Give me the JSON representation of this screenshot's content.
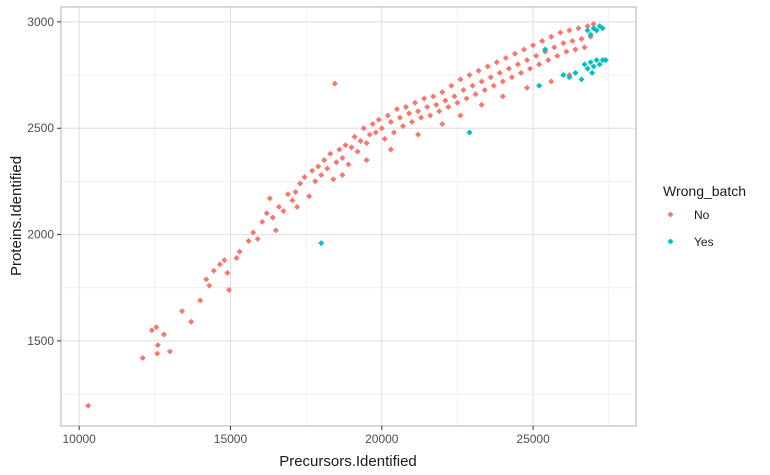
{
  "chart_data": {
    "type": "scatter",
    "xlabel": "Precursors.Identified",
    "ylabel": "Proteins.Identified",
    "xlim": [
      9400,
      28400
    ],
    "ylim": [
      1100,
      3070
    ],
    "x_ticks": [
      10000,
      15000,
      20000,
      25000
    ],
    "y_ticks": [
      1500,
      2000,
      2500,
      3000
    ],
    "grid": true,
    "legend": {
      "title": "Wrong_batch",
      "placement": "right",
      "entries": [
        {
          "label": "No",
          "color": "#F8766D"
        },
        {
          "label": "Yes",
          "color": "#00BFC4"
        }
      ]
    },
    "series": [
      {
        "name": "No",
        "color": "#F8766D",
        "marker": "diamond",
        "points": [
          [
            10300,
            1195
          ],
          [
            12100,
            1420
          ],
          [
            12400,
            1550
          ],
          [
            12550,
            1565
          ],
          [
            12600,
            1480
          ],
          [
            12580,
            1440
          ],
          [
            12800,
            1530
          ],
          [
            13000,
            1450
          ],
          [
            13400,
            1640
          ],
          [
            13700,
            1590
          ],
          [
            14000,
            1690
          ],
          [
            14200,
            1790
          ],
          [
            14300,
            1760
          ],
          [
            14450,
            1830
          ],
          [
            14650,
            1860
          ],
          [
            14800,
            1880
          ],
          [
            14900,
            1820
          ],
          [
            14950,
            1740
          ],
          [
            15200,
            1890
          ],
          [
            15300,
            1920
          ],
          [
            15600,
            1970
          ],
          [
            15750,
            2010
          ],
          [
            15900,
            1980
          ],
          [
            16050,
            2060
          ],
          [
            16200,
            2100
          ],
          [
            16400,
            2080
          ],
          [
            16500,
            2020
          ],
          [
            16600,
            2130
          ],
          [
            16750,
            2110
          ],
          [
            16900,
            2190
          ],
          [
            17050,
            2160
          ],
          [
            17150,
            2200
          ],
          [
            17300,
            2240
          ],
          [
            17450,
            2270
          ],
          [
            17600,
            2180
          ],
          [
            17700,
            2300
          ],
          [
            17800,
            2250
          ],
          [
            17900,
            2320
          ],
          [
            18000,
            2280
          ],
          [
            18100,
            2350
          ],
          [
            18200,
            2310
          ],
          [
            18300,
            2380
          ],
          [
            18400,
            2260
          ],
          [
            18500,
            2340
          ],
          [
            18600,
            2400
          ],
          [
            18700,
            2360
          ],
          [
            18800,
            2420
          ],
          [
            18900,
            2330
          ],
          [
            19000,
            2410
          ],
          [
            19100,
            2460
          ],
          [
            19200,
            2390
          ],
          [
            19300,
            2440
          ],
          [
            19400,
            2500
          ],
          [
            19500,
            2430
          ],
          [
            19600,
            2470
          ],
          [
            19700,
            2520
          ],
          [
            19800,
            2480
          ],
          [
            19900,
            2540
          ],
          [
            20000,
            2500
          ],
          [
            20100,
            2450
          ],
          [
            20200,
            2560
          ],
          [
            20300,
            2530
          ],
          [
            20400,
            2480
          ],
          [
            20500,
            2590
          ],
          [
            20600,
            2550
          ],
          [
            20700,
            2510
          ],
          [
            20800,
            2600
          ],
          [
            20900,
            2570
          ],
          [
            21000,
            2530
          ],
          [
            21100,
            2620
          ],
          [
            21200,
            2580
          ],
          [
            21300,
            2550
          ],
          [
            21400,
            2640
          ],
          [
            21500,
            2600
          ],
          [
            21600,
            2560
          ],
          [
            21700,
            2650
          ],
          [
            21800,
            2610
          ],
          [
            21900,
            2580
          ],
          [
            22000,
            2670
          ],
          [
            22100,
            2630
          ],
          [
            22200,
            2600
          ],
          [
            22300,
            2700
          ],
          [
            22400,
            2650
          ],
          [
            22500,
            2620
          ],
          [
            22600,
            2730
          ],
          [
            22700,
            2680
          ],
          [
            22800,
            2640
          ],
          [
            22900,
            2750
          ],
          [
            23000,
            2700
          ],
          [
            23100,
            2660
          ],
          [
            23200,
            2770
          ],
          [
            23300,
            2720
          ],
          [
            23400,
            2680
          ],
          [
            23500,
            2790
          ],
          [
            23600,
            2740
          ],
          [
            23700,
            2700
          ],
          [
            23800,
            2810
          ],
          [
            23900,
            2760
          ],
          [
            24000,
            2720
          ],
          [
            24100,
            2830
          ],
          [
            24200,
            2780
          ],
          [
            24300,
            2740
          ],
          [
            24400,
            2850
          ],
          [
            24500,
            2800
          ],
          [
            24600,
            2760
          ],
          [
            24700,
            2870
          ],
          [
            24800,
            2820
          ],
          [
            24900,
            2780
          ],
          [
            25000,
            2890
          ],
          [
            25100,
            2840
          ],
          [
            25200,
            2800
          ],
          [
            25300,
            2910
          ],
          [
            25400,
            2860
          ],
          [
            25500,
            2820
          ],
          [
            25600,
            2930
          ],
          [
            25700,
            2880
          ],
          [
            25800,
            2840
          ],
          [
            25900,
            2950
          ],
          [
            26000,
            2900
          ],
          [
            26100,
            2860
          ],
          [
            26200,
            2960
          ],
          [
            26300,
            2910
          ],
          [
            26400,
            2870
          ],
          [
            26500,
            2970
          ],
          [
            26600,
            2920
          ],
          [
            26700,
            2880
          ],
          [
            26800,
            2980
          ],
          [
            26900,
            2930
          ],
          [
            27000,
            2990
          ],
          [
            18450,
            2710
          ],
          [
            16300,
            2170
          ],
          [
            17200,
            2130
          ],
          [
            18700,
            2280
          ],
          [
            19500,
            2350
          ],
          [
            20300,
            2400
          ],
          [
            21200,
            2470
          ],
          [
            22000,
            2520
          ],
          [
            22600,
            2560
          ],
          [
            23300,
            2610
          ],
          [
            24000,
            2650
          ],
          [
            24800,
            2690
          ],
          [
            25600,
            2720
          ],
          [
            26200,
            2750
          ]
        ]
      },
      {
        "name": "Yes",
        "color": "#00BFC4",
        "marker": "diamond",
        "points": [
          [
            18000,
            1960
          ],
          [
            22900,
            2480
          ],
          [
            25200,
            2700
          ],
          [
            25400,
            2870
          ],
          [
            26000,
            2750
          ],
          [
            26200,
            2740
          ],
          [
            26400,
            2760
          ],
          [
            26600,
            2730
          ],
          [
            26700,
            2800
          ],
          [
            26800,
            2780
          ],
          [
            26900,
            2810
          ],
          [
            27000,
            2790
          ],
          [
            27100,
            2820
          ],
          [
            27200,
            2800
          ],
          [
            27300,
            2820
          ],
          [
            26800,
            2960
          ],
          [
            26900,
            2940
          ],
          [
            27000,
            2970
          ],
          [
            27100,
            2960
          ],
          [
            27200,
            2980
          ],
          [
            27300,
            2970
          ],
          [
            27400,
            2820
          ],
          [
            26950,
            2760
          ]
        ]
      }
    ]
  }
}
